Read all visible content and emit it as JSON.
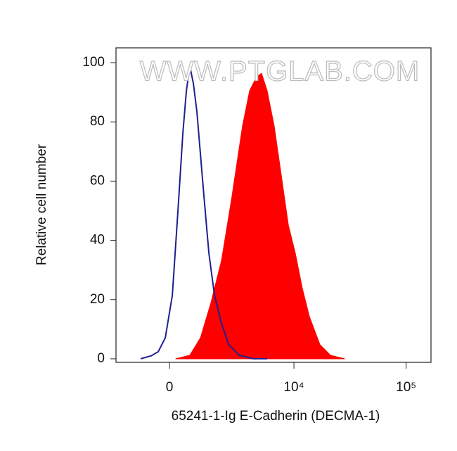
{
  "chart_data": {
    "type": "area",
    "xlabel": "65241-1-Ig E-Cadherin (DECMA-1)",
    "ylabel": "Relative cell number",
    "annotation": "WWW.PTGLAB.COM",
    "xscale": "biexponential",
    "xlim": [
      -2090,
      166300
    ],
    "ylim": [
      -1.2,
      105
    ],
    "xticks": [
      0,
      {
        "value": 10000,
        "label": "10⁴"
      },
      {
        "value": 100000,
        "label": "10⁵"
      }
    ],
    "yticks": [
      0,
      20,
      40,
      60,
      80,
      100
    ],
    "series": [
      {
        "color": "#ff0000",
        "fill": true,
        "x": [
          205,
          676,
          1065,
          1504,
          2014,
          2607,
          3333,
          3903,
          4545,
          5062,
          5712,
          6623,
          7692,
          8900,
          10285,
          11890,
          13750,
          17090,
          21220,
          28320
        ],
        "values": [
          0,
          1.2,
          7.1,
          19,
          33.3,
          54.8,
          78.6,
          90.5,
          95.2,
          96.4,
          90.5,
          78.6,
          61.9,
          45.2,
          35.7,
          23.8,
          14.3,
          4.8,
          1.2,
          0
        ]
      },
      {
        "color": "#1f1f8f",
        "fill": false,
        "x": [
          -984,
          -603,
          -366,
          -136,
          91,
          273,
          436,
          555,
          676,
          802,
          931,
          1065,
          1205,
          1411,
          1666,
          2014,
          2410,
          3096,
          4214,
          5712
        ],
        "values": [
          0,
          1,
          2.4,
          7.1,
          21.4,
          50,
          76.2,
          90.5,
          98.8,
          92.9,
          83.3,
          69,
          54.8,
          35.7,
          21.4,
          11.9,
          4.8,
          1.2,
          0,
          0
        ]
      }
    ]
  }
}
